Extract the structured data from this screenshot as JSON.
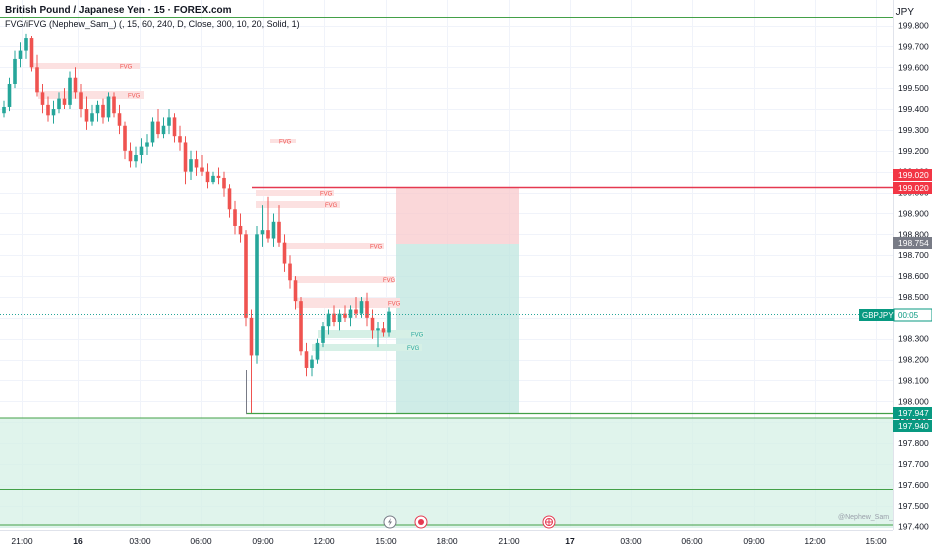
{
  "header": {
    "title": "British Pound / Japanese Yen · 15 · FOREX.com",
    "indicator": "FVG/iFVG (Nephew_Sam_) (, 15, 60, 240, D, Close, 300, 10, 20, Solid, 1)",
    "currency": "JPY"
  },
  "symbol": "GBPJPY",
  "countdown": "00:05",
  "watermark": "@Nephew_Sam_",
  "y_axis": {
    "ticks": [
      "199.800",
      "199.700",
      "199.600",
      "199.500",
      "199.400",
      "199.300",
      "199.200",
      "199.100",
      "199.000",
      "198.900",
      "198.800",
      "198.700",
      "198.600",
      "198.500",
      "198.400",
      "198.300",
      "198.200",
      "198.100",
      "198.000",
      "197.900",
      "197.800",
      "197.700",
      "197.600",
      "197.500",
      "197.400"
    ]
  },
  "price_labels": [
    {
      "price": "199.020",
      "color": "#f23645"
    },
    {
      "price": "199.020",
      "color": "#f23645"
    },
    {
      "price": "198.754",
      "color": "#787b86"
    },
    {
      "price": "197.947",
      "color": "#089981"
    },
    {
      "price": "197.940",
      "color": "#089981"
    }
  ],
  "x_axis": {
    "ticks": [
      "21:00",
      "16",
      "03:00",
      "06:00",
      "09:00",
      "12:00",
      "15:00",
      "18:00",
      "21:00",
      "17",
      "03:00",
      "06:00",
      "09:00",
      "12:00",
      "15:00"
    ]
  },
  "fvg_label": "FVG",
  "colors": {
    "bull": "#26a69a",
    "bear": "#ef5350",
    "bear_zone": "#fce1e1",
    "bull_zone": "#d6f0e6",
    "green_line": "#43a047",
    "red_line": "#e53950"
  },
  "icons": [
    "lightning-icon",
    "record-icon",
    "globe-icon"
  ],
  "chart_data": {
    "type": "candlestick",
    "y_range": [
      197.4,
      199.8
    ],
    "candles": [
      {
        "o": 199.38,
        "h": 199.44,
        "l": 199.36,
        "c": 199.41
      },
      {
        "o": 199.41,
        "h": 199.55,
        "l": 199.39,
        "c": 199.52
      },
      {
        "o": 199.52,
        "h": 199.68,
        "l": 199.5,
        "c": 199.64
      },
      {
        "o": 199.64,
        "h": 199.72,
        "l": 199.6,
        "c": 199.68
      },
      {
        "o": 199.68,
        "h": 199.76,
        "l": 199.64,
        "c": 199.74
      },
      {
        "o": 199.74,
        "h": 199.75,
        "l": 199.58,
        "c": 199.6
      },
      {
        "o": 199.6,
        "h": 199.66,
        "l": 199.46,
        "c": 199.48
      },
      {
        "o": 199.48,
        "h": 199.52,
        "l": 199.38,
        "c": 199.42
      },
      {
        "o": 199.42,
        "h": 199.46,
        "l": 199.34,
        "c": 199.37
      },
      {
        "o": 199.37,
        "h": 199.44,
        "l": 199.33,
        "c": 199.4
      },
      {
        "o": 199.4,
        "h": 199.48,
        "l": 199.38,
        "c": 199.45
      },
      {
        "o": 199.45,
        "h": 199.5,
        "l": 199.4,
        "c": 199.42
      },
      {
        "o": 199.42,
        "h": 199.58,
        "l": 199.4,
        "c": 199.55
      },
      {
        "o": 199.55,
        "h": 199.6,
        "l": 199.45,
        "c": 199.48
      },
      {
        "o": 199.48,
        "h": 199.52,
        "l": 199.36,
        "c": 199.4
      },
      {
        "o": 199.4,
        "h": 199.46,
        "l": 199.3,
        "c": 199.34
      },
      {
        "o": 199.34,
        "h": 199.42,
        "l": 199.32,
        "c": 199.38
      },
      {
        "o": 199.38,
        "h": 199.44,
        "l": 199.34,
        "c": 199.42
      },
      {
        "o": 199.42,
        "h": 199.45,
        "l": 199.33,
        "c": 199.36
      },
      {
        "o": 199.36,
        "h": 199.48,
        "l": 199.34,
        "c": 199.46
      },
      {
        "o": 199.46,
        "h": 199.48,
        "l": 199.36,
        "c": 199.38
      },
      {
        "o": 199.38,
        "h": 199.42,
        "l": 199.28,
        "c": 199.32
      },
      {
        "o": 199.32,
        "h": 199.34,
        "l": 199.16,
        "c": 199.2
      },
      {
        "o": 199.2,
        "h": 199.24,
        "l": 199.12,
        "c": 199.15
      },
      {
        "o": 199.15,
        "h": 199.22,
        "l": 199.12,
        "c": 199.18
      },
      {
        "o": 199.18,
        "h": 199.26,
        "l": 199.14,
        "c": 199.22
      },
      {
        "o": 199.22,
        "h": 199.28,
        "l": 199.18,
        "c": 199.24
      },
      {
        "o": 199.24,
        "h": 199.36,
        "l": 199.22,
        "c": 199.34
      },
      {
        "o": 199.34,
        "h": 199.4,
        "l": 199.26,
        "c": 199.28
      },
      {
        "o": 199.28,
        "h": 199.36,
        "l": 199.26,
        "c": 199.32
      },
      {
        "o": 199.32,
        "h": 199.4,
        "l": 199.28,
        "c": 199.36
      },
      {
        "o": 199.36,
        "h": 199.38,
        "l": 199.24,
        "c": 199.27
      },
      {
        "o": 199.27,
        "h": 199.32,
        "l": 199.2,
        "c": 199.24
      },
      {
        "o": 199.24,
        "h": 199.27,
        "l": 199.04,
        "c": 199.1
      },
      {
        "o": 199.1,
        "h": 199.2,
        "l": 199.06,
        "c": 199.16
      },
      {
        "o": 199.16,
        "h": 199.2,
        "l": 199.08,
        "c": 199.12
      },
      {
        "o": 199.12,
        "h": 199.18,
        "l": 199.08,
        "c": 199.1
      },
      {
        "o": 199.1,
        "h": 199.14,
        "l": 199.02,
        "c": 199.05
      },
      {
        "o": 199.05,
        "h": 199.1,
        "l": 199.04,
        "c": 199.08
      },
      {
        "o": 199.08,
        "h": 199.12,
        "l": 199.04,
        "c": 199.07
      },
      {
        "o": 199.07,
        "h": 199.1,
        "l": 198.98,
        "c": 199.02
      },
      {
        "o": 199.02,
        "h": 199.04,
        "l": 198.88,
        "c": 198.92
      },
      {
        "o": 198.92,
        "h": 198.96,
        "l": 198.8,
        "c": 198.84
      },
      {
        "o": 198.84,
        "h": 198.9,
        "l": 198.76,
        "c": 198.8
      },
      {
        "o": 198.8,
        "h": 198.82,
        "l": 198.36,
        "c": 198.4
      },
      {
        "o": 198.4,
        "h": 198.44,
        "l": 197.94,
        "c": 198.22
      },
      {
        "o": 198.22,
        "h": 198.84,
        "l": 198.18,
        "c": 198.8
      },
      {
        "o": 198.8,
        "h": 198.94,
        "l": 198.74,
        "c": 198.82
      },
      {
        "o": 198.82,
        "h": 198.98,
        "l": 198.76,
        "c": 198.78
      },
      {
        "o": 198.78,
        "h": 198.9,
        "l": 198.74,
        "c": 198.86
      },
      {
        "o": 198.86,
        "h": 198.94,
        "l": 198.74,
        "c": 198.76
      },
      {
        "o": 198.76,
        "h": 198.8,
        "l": 198.62,
        "c": 198.66
      },
      {
        "o": 198.66,
        "h": 198.7,
        "l": 198.54,
        "c": 198.58
      },
      {
        "o": 198.58,
        "h": 198.6,
        "l": 198.44,
        "c": 198.48
      },
      {
        "o": 198.48,
        "h": 198.5,
        "l": 198.22,
        "c": 198.24
      },
      {
        "o": 198.24,
        "h": 198.28,
        "l": 198.12,
        "c": 198.16
      },
      {
        "o": 198.16,
        "h": 198.22,
        "l": 198.12,
        "c": 198.2
      },
      {
        "o": 198.2,
        "h": 198.3,
        "l": 198.18,
        "c": 198.28
      },
      {
        "o": 198.28,
        "h": 198.38,
        "l": 198.26,
        "c": 198.36
      },
      {
        "o": 198.36,
        "h": 198.44,
        "l": 198.32,
        "c": 198.42
      },
      {
        "o": 198.42,
        "h": 198.46,
        "l": 198.36,
        "c": 198.38
      },
      {
        "o": 198.38,
        "h": 198.44,
        "l": 198.34,
        "c": 198.42
      },
      {
        "o": 198.42,
        "h": 198.46,
        "l": 198.38,
        "c": 198.4
      },
      {
        "o": 198.4,
        "h": 198.46,
        "l": 198.36,
        "c": 198.44
      },
      {
        "o": 198.44,
        "h": 198.5,
        "l": 198.4,
        "c": 198.42
      },
      {
        "o": 198.42,
        "h": 198.5,
        "l": 198.4,
        "c": 198.48
      },
      {
        "o": 198.48,
        "h": 198.52,
        "l": 198.36,
        "c": 198.4
      },
      {
        "o": 198.4,
        "h": 198.44,
        "l": 198.3,
        "c": 198.34
      },
      {
        "o": 198.34,
        "h": 198.38,
        "l": 198.26,
        "c": 198.35
      },
      {
        "o": 198.35,
        "h": 198.38,
        "l": 198.31,
        "c": 198.33
      },
      {
        "o": 198.33,
        "h": 198.45,
        "l": 198.31,
        "c": 198.43
      }
    ]
  }
}
